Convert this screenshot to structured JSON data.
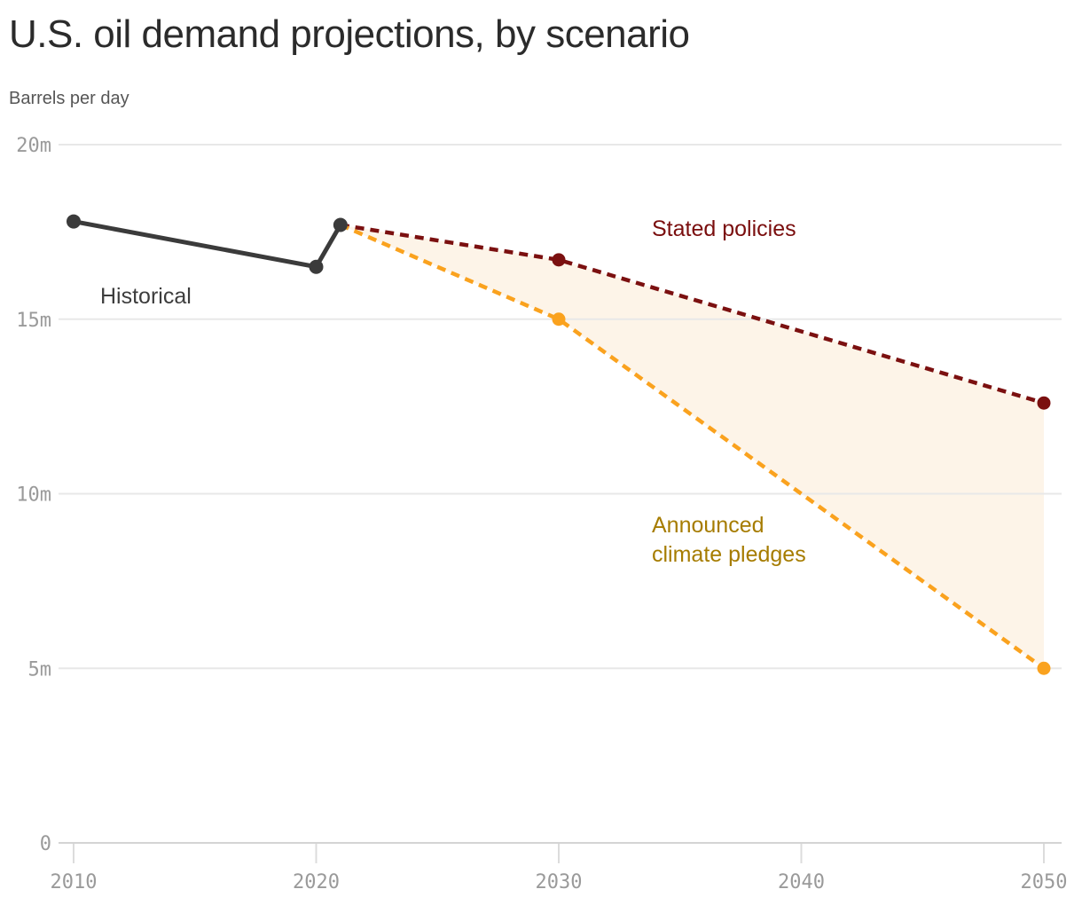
{
  "header": {
    "title": "U.S. oil demand projections, by scenario",
    "subtitle": "Barrels per day"
  },
  "chart_data": {
    "type": "line",
    "title": "U.S. oil demand projections, by scenario",
    "ylabel": "Barrels per day",
    "unit": "million barrels per day",
    "xlim": [
      2010,
      2050
    ],
    "ylim": [
      0,
      20
    ],
    "grid": "horizontal",
    "legend_position": "inline-annotations",
    "x_ticks": [
      "2010",
      "2020",
      "2030",
      "2040",
      "2050"
    ],
    "y_ticks": [
      {
        "value": 0,
        "label": "0"
      },
      {
        "value": 5,
        "label": "5m"
      },
      {
        "value": 10,
        "label": "10m"
      },
      {
        "value": 15,
        "label": "15m"
      },
      {
        "value": 20,
        "label": "20m"
      }
    ],
    "series": [
      {
        "id": "historical",
        "name": "Historical",
        "style": "solid",
        "color": "#3b3b3b",
        "x": [
          2010,
          2020,
          2021
        ],
        "values": [
          17.8,
          16.5,
          17.7
        ],
        "markers": [
          2010,
          2020,
          2021
        ]
      },
      {
        "id": "stated-policies",
        "name": "Stated policies",
        "style": "dashed",
        "color": "#7b1010",
        "x": [
          2021,
          2030,
          2050
        ],
        "values": [
          17.7,
          16.7,
          12.6
        ],
        "markers": [
          2030,
          2050
        ]
      },
      {
        "id": "announced-climate-pledges",
        "name": "Announced climate pledges",
        "style": "dashed",
        "color": "#faa21e",
        "x": [
          2021,
          2030,
          2050
        ],
        "values": [
          17.7,
          15.0,
          5.0
        ],
        "markers": [
          2030,
          2050
        ]
      }
    ],
    "fill_between": {
      "upper": "Stated policies",
      "lower": "Announced climate pledges",
      "color": "#fdf4e8"
    },
    "annotations": [
      {
        "id": "historical",
        "text": "Historical",
        "color": "#3d3d3d"
      },
      {
        "id": "stated",
        "text": "Stated policies",
        "color": "#7a0e0e"
      },
      {
        "id": "pledges",
        "text": "Announced climate pledges",
        "color": "#a67c00"
      }
    ],
    "axis_colors": {
      "gridline": "#e8e8e8",
      "zero_line": "#d4d4d4",
      "tick_mark": "#dcdcdc",
      "tick_label": "#9a9a9a"
    }
  }
}
